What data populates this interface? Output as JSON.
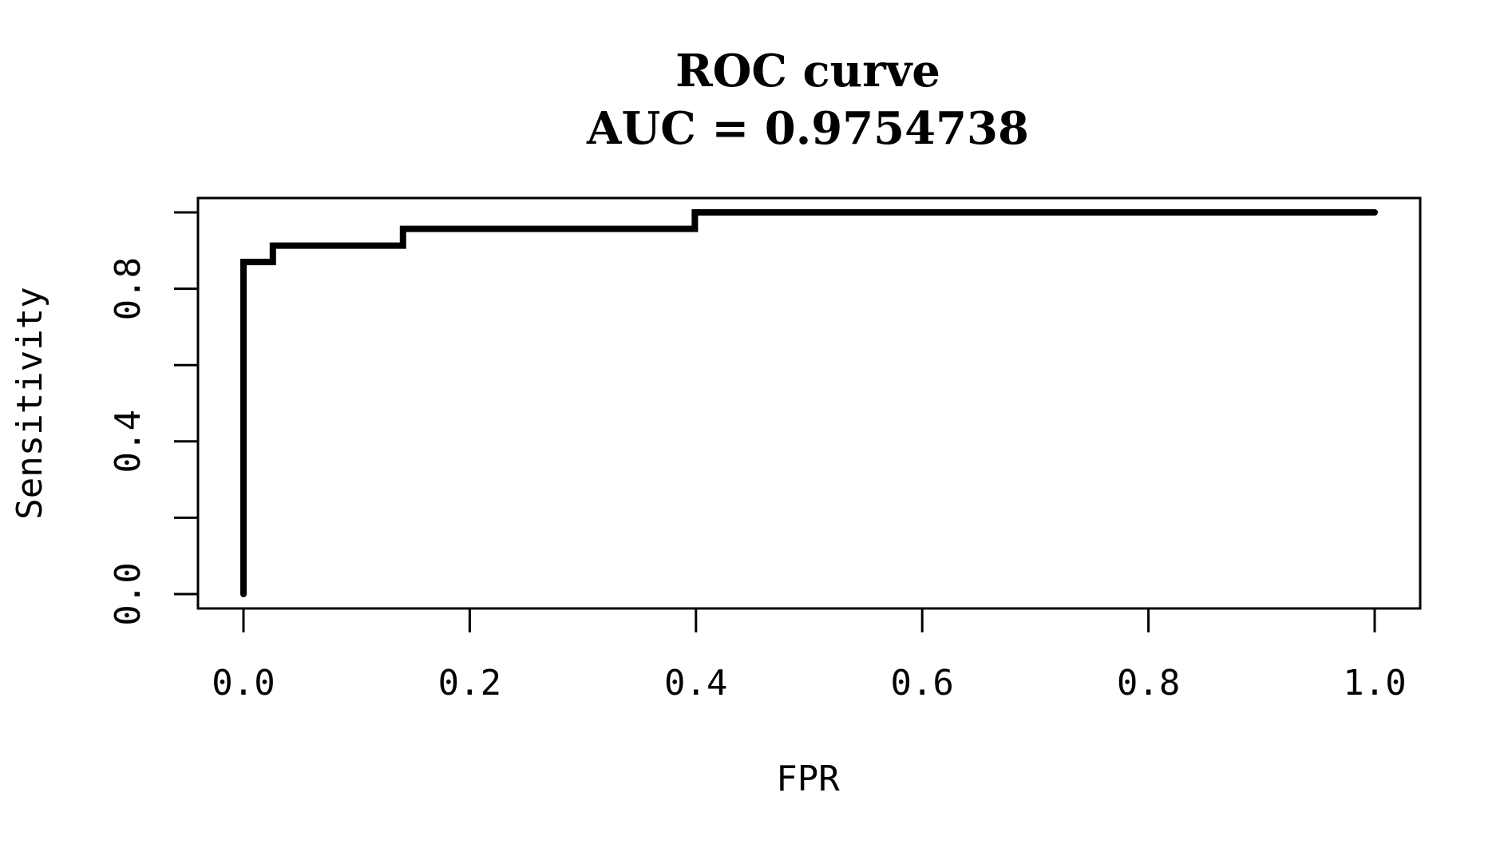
{
  "chart_data": {
    "type": "line",
    "title": "ROC curve",
    "subtitle": "AUC = 0.9754738",
    "xlabel": "FPR",
    "ylabel": "Sensitivity",
    "xlim": [
      0,
      1
    ],
    "ylim": [
      0,
      1
    ],
    "x_ticks": [
      0.0,
      0.2,
      0.4,
      0.6,
      0.8,
      1.0
    ],
    "x_tick_labels": [
      "0.0",
      "0.2",
      "0.4",
      "0.6",
      "0.8",
      "1.0"
    ],
    "y_ticks": [
      0.0,
      0.2,
      0.4,
      0.6,
      0.8,
      1.0
    ],
    "y_tick_labels": [
      "0.0",
      "",
      "0.4",
      "",
      "0.8",
      ""
    ],
    "grid": false,
    "legend": "none",
    "series": [
      {
        "line_color": "#000000",
        "x": [
          0.0,
          0.0,
          0.026,
          0.026,
          0.141,
          0.141,
          0.399,
          0.399,
          1.0
        ],
        "y": [
          0.0,
          0.87,
          0.87,
          0.913,
          0.913,
          0.957,
          0.957,
          1.0,
          1.0
        ]
      }
    ]
  }
}
